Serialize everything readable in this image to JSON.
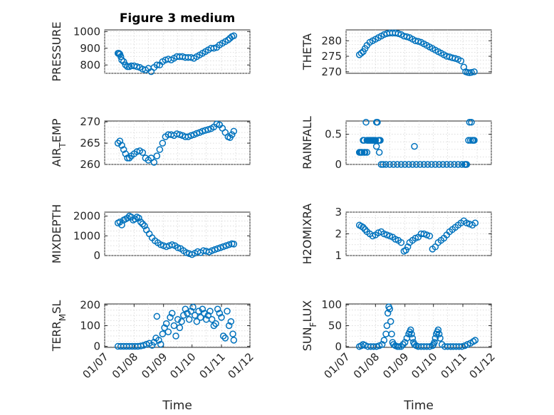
{
  "colors": {
    "marker": "#0072BD",
    "axis": "#262626",
    "grid": "#d0d0d0",
    "background": "#ffffff"
  },
  "chart_data": [
    {
      "id": "pressure",
      "type": "scatter",
      "title": "Figure 3 medium",
      "ylabel": "PRESSURE",
      "xlabel": "",
      "ylim": [
        750,
        1010
      ],
      "yticks": [
        800,
        900,
        1000
      ],
      "ytick_labels": [
        "800",
        "900",
        "1000"
      ],
      "xlim": [
        "2023-07-01",
        "2023-12-01"
      ],
      "xticks": [],
      "x": [
        "2023-07-15",
        "2023-07-16",
        "2023-07-17",
        "2023-07-18",
        "2023-07-19",
        "2023-07-21",
        "2023-07-23",
        "2023-07-25",
        "2023-07-27",
        "2023-07-29",
        "2023-08-01",
        "2023-08-04",
        "2023-08-07",
        "2023-08-10",
        "2023-08-13",
        "2023-08-16",
        "2023-08-19",
        "2023-08-22",
        "2023-08-25",
        "2023-08-28",
        "2023-08-31",
        "2023-09-03",
        "2023-09-06",
        "2023-09-09",
        "2023-09-12",
        "2023-09-15",
        "2023-09-18",
        "2023-09-21",
        "2023-09-24",
        "2023-09-27",
        "2023-09-30",
        "2023-10-03",
        "2023-10-06",
        "2023-10-09",
        "2023-10-12",
        "2023-10-15",
        "2023-10-18",
        "2023-10-21",
        "2023-10-24",
        "2023-10-27",
        "2023-10-30",
        "2023-11-02",
        "2023-11-05",
        "2023-11-08",
        "2023-11-10",
        "2023-11-12",
        "2023-11-14"
      ],
      "y": [
        870,
        870,
        865,
        850,
        830,
        820,
        800,
        790,
        790,
        795,
        795,
        790,
        785,
        775,
        770,
        780,
        760,
        785,
        800,
        800,
        820,
        830,
        835,
        830,
        840,
        850,
        850,
        850,
        845,
        845,
        845,
        840,
        850,
        860,
        870,
        880,
        890,
        900,
        900,
        905,
        920,
        930,
        940,
        950,
        960,
        970,
        975
      ]
    },
    {
      "id": "theta",
      "type": "scatter",
      "ylabel": "THETA",
      "xlabel": "",
      "ylim": [
        269.5,
        283.5
      ],
      "yticks": [
        270,
        275,
        280
      ],
      "ytick_labels": [
        "270",
        "275",
        "280"
      ],
      "xlim": [
        "2023-07-01",
        "2023-12-01"
      ],
      "xticks": [],
      "x": [
        "2023-07-15",
        "2023-07-17",
        "2023-07-19",
        "2023-07-21",
        "2023-07-23",
        "2023-07-26",
        "2023-07-29",
        "2023-08-01",
        "2023-08-04",
        "2023-08-07",
        "2023-08-10",
        "2023-08-13",
        "2023-08-16",
        "2023-08-19",
        "2023-08-22",
        "2023-08-25",
        "2023-08-28",
        "2023-08-31",
        "2023-09-03",
        "2023-09-06",
        "2023-09-09",
        "2023-09-12",
        "2023-09-15",
        "2023-09-18",
        "2023-09-21",
        "2023-09-24",
        "2023-09-27",
        "2023-09-30",
        "2023-10-03",
        "2023-10-06",
        "2023-10-09",
        "2023-10-12",
        "2023-10-15",
        "2023-10-18",
        "2023-10-21",
        "2023-10-24",
        "2023-10-27",
        "2023-10-30",
        "2023-11-02",
        "2023-11-04",
        "2023-11-06",
        "2023-11-08",
        "2023-11-10",
        "2023-11-13"
      ],
      "y": [
        275.5,
        276,
        276.5,
        277.5,
        278.5,
        279.5,
        280,
        280.5,
        281,
        281.5,
        282,
        282.3,
        282.5,
        282.5,
        282.5,
        282.3,
        282,
        281.5,
        281.3,
        281,
        280.5,
        280,
        279.8,
        279.5,
        279,
        278.5,
        278,
        277.5,
        277,
        276.5,
        276,
        275.5,
        275,
        274.8,
        274.5,
        274.3,
        274,
        273.5,
        271.5,
        270,
        269.8,
        269.7,
        269.8,
        270
      ]
    },
    {
      "id": "air_temp",
      "type": "scatter",
      "ylabel": "AIR_TEMP",
      "ylabel_main": "AIR",
      "ylabel_sub": "T",
      "ylabel_rest": "EMP",
      "xlabel": "",
      "ylim": [
        260,
        270.2
      ],
      "yticks": [
        260,
        265,
        270
      ],
      "ytick_labels": [
        "260",
        "265",
        "270"
      ],
      "xlim": [
        "2023-07-01",
        "2023-12-01"
      ],
      "xticks": [],
      "x": [
        "2023-07-15",
        "2023-07-17",
        "2023-07-19",
        "2023-07-21",
        "2023-07-23",
        "2023-07-25",
        "2023-07-27",
        "2023-07-29",
        "2023-08-01",
        "2023-08-04",
        "2023-08-07",
        "2023-08-10",
        "2023-08-13",
        "2023-08-16",
        "2023-08-19",
        "2023-08-22",
        "2023-08-25",
        "2023-08-28",
        "2023-08-31",
        "2023-09-03",
        "2023-09-06",
        "2023-09-09",
        "2023-09-12",
        "2023-09-15",
        "2023-09-18",
        "2023-09-21",
        "2023-09-24",
        "2023-09-27",
        "2023-09-30",
        "2023-10-03",
        "2023-10-06",
        "2023-10-09",
        "2023-10-12",
        "2023-10-15",
        "2023-10-18",
        "2023-10-21",
        "2023-10-24",
        "2023-10-27",
        "2023-10-30",
        "2023-11-02",
        "2023-11-05",
        "2023-11-08",
        "2023-11-10",
        "2023-11-12",
        "2023-11-14"
      ],
      "y": [
        265,
        265.5,
        264.5,
        263.5,
        262.5,
        261.5,
        261.5,
        262,
        262.5,
        263,
        263.2,
        262.8,
        261.5,
        261,
        261.5,
        260.5,
        262,
        263.5,
        265,
        266.5,
        267,
        267,
        266.8,
        267.2,
        267,
        266.8,
        266.5,
        266.5,
        266.8,
        267,
        267.3,
        267.5,
        267.8,
        268,
        268.2,
        268.4,
        268.8,
        269.5,
        269.3,
        268.5,
        267.5,
        266.5,
        266.3,
        267,
        267.8
      ]
    },
    {
      "id": "rainfall",
      "type": "scatter",
      "ylabel": "RAINFALL",
      "xlabel": "",
      "ylim": [
        0,
        0.72
      ],
      "yticks": [
        0,
        0.5
      ],
      "ytick_labels": [
        "0",
        "0.5"
      ],
      "xlim": [
        "2023-07-01",
        "2023-12-01"
      ],
      "xticks": [],
      "x": [
        "2023-07-15",
        "2023-07-16",
        "2023-07-17",
        "2023-07-18",
        "2023-07-19",
        "2023-07-20",
        "2023-07-20",
        "2023-07-21",
        "2023-07-22",
        "2023-07-23",
        "2023-07-23",
        "2023-07-24",
        "2023-07-25",
        "2023-07-26",
        "2023-07-27",
        "2023-07-28",
        "2023-07-29",
        "2023-07-30",
        "2023-07-31",
        "2023-08-01",
        "2023-08-02",
        "2023-08-03",
        "2023-08-04",
        "2023-08-05",
        "2023-08-06",
        "2023-08-02",
        "2023-08-05",
        "2023-08-07",
        "2023-08-09",
        "2023-08-12",
        "2023-08-16",
        "2023-08-20",
        "2023-08-24",
        "2023-08-28",
        "2023-09-01",
        "2023-09-05",
        "2023-09-09",
        "2023-09-13",
        "2023-09-17",
        "2023-09-21",
        "2023-09-25",
        "2023-09-29",
        "2023-10-03",
        "2023-10-07",
        "2023-10-11",
        "2023-10-15",
        "2023-10-19",
        "2023-10-23",
        "2023-10-27",
        "2023-10-31",
        "2023-09-11",
        "2023-11-03",
        "2023-11-04",
        "2023-11-04",
        "2023-11-05",
        "2023-11-07",
        "2023-11-08",
        "2023-11-09",
        "2023-11-10",
        "2023-11-11",
        "2023-11-12",
        "2023-11-13"
      ],
      "y": [
        0.2,
        0.2,
        0.2,
        0.2,
        0.4,
        0.4,
        0.2,
        0.2,
        0.7,
        0.4,
        0.2,
        0.4,
        0.4,
        0.4,
        0.4,
        0.4,
        0.4,
        0.4,
        0.4,
        0.4,
        0.7,
        0.7,
        0.4,
        0.4,
        0.4,
        0.3,
        0.2,
        0,
        0,
        0,
        0,
        0,
        0,
        0,
        0,
        0,
        0,
        0,
        0,
        0,
        0,
        0,
        0,
        0,
        0,
        0,
        0,
        0,
        0,
        0,
        0.3,
        0,
        0,
        0,
        0,
        0.4,
        0.7,
        0.4,
        0.7,
        0.4,
        0.4,
        0.4
      ]
    },
    {
      "id": "mixdepth",
      "type": "scatter",
      "ylabel": "MIXDEPTH",
      "xlabel": "",
      "ylim": [
        0,
        2200
      ],
      "yticks": [
        0,
        1000,
        2000
      ],
      "ytick_labels": [
        "0",
        "1000",
        "2000"
      ],
      "xlim": [
        "2023-07-01",
        "2023-12-01"
      ],
      "xticks": [],
      "x": [
        "2023-07-15",
        "2023-07-17",
        "2023-07-19",
        "2023-07-21",
        "2023-07-23",
        "2023-07-25",
        "2023-07-27",
        "2023-07-29",
        "2023-07-31",
        "2023-08-02",
        "2023-08-04",
        "2023-08-06",
        "2023-08-08",
        "2023-08-10",
        "2023-08-12",
        "2023-08-14",
        "2023-08-17",
        "2023-08-20",
        "2023-08-23",
        "2023-08-26",
        "2023-08-29",
        "2023-09-01",
        "2023-09-04",
        "2023-09-07",
        "2023-09-10",
        "2023-09-13",
        "2023-09-16",
        "2023-09-19",
        "2023-09-22",
        "2023-09-25",
        "2023-09-28",
        "2023-10-01",
        "2023-10-04",
        "2023-10-07",
        "2023-10-10",
        "2023-10-13",
        "2023-10-16",
        "2023-10-19",
        "2023-10-22",
        "2023-10-25",
        "2023-10-28",
        "2023-10-31",
        "2023-11-03",
        "2023-11-06",
        "2023-11-09",
        "2023-11-12",
        "2023-11-14"
      ],
      "y": [
        1650,
        1700,
        1550,
        1800,
        1850,
        1900,
        2000,
        1950,
        1800,
        1850,
        1950,
        1900,
        1700,
        1600,
        1500,
        1300,
        1100,
        900,
        750,
        650,
        550,
        500,
        450,
        500,
        550,
        500,
        400,
        350,
        250,
        150,
        100,
        50,
        120,
        200,
        150,
        250,
        220,
        180,
        250,
        300,
        350,
        400,
        450,
        500,
        550,
        600,
        580
      ]
    },
    {
      "id": "h2omixra",
      "type": "scatter",
      "ylabel": "H2OMIXRA",
      "xlabel": "",
      "ylim": [
        1,
        3
      ],
      "yticks": [
        1,
        2,
        3
      ],
      "ytick_labels": [
        "1",
        "2",
        "3"
      ],
      "xlim": [
        "2023-07-01",
        "2023-12-01"
      ],
      "xticks": [],
      "x": [
        "2023-07-15",
        "2023-07-17",
        "2023-07-19",
        "2023-07-21",
        "2023-07-23",
        "2023-07-26",
        "2023-07-29",
        "2023-08-01",
        "2023-08-04",
        "2023-08-07",
        "2023-08-10",
        "2023-08-13",
        "2023-08-16",
        "2023-08-19",
        "2023-08-22",
        "2023-08-25",
        "2023-08-28",
        "2023-08-31",
        "2023-09-02",
        "2023-09-04",
        "2023-09-06",
        "2023-09-09",
        "2023-09-12",
        "2023-09-15",
        "2023-09-18",
        "2023-09-21",
        "2023-09-24",
        "2023-09-27",
        "2023-09-30",
        "2023-10-03",
        "2023-10-06",
        "2023-10-09",
        "2023-10-12",
        "2023-10-15",
        "2023-10-18",
        "2023-10-21",
        "2023-10-24",
        "2023-10-27",
        "2023-10-30",
        "2023-11-02",
        "2023-11-05",
        "2023-11-08",
        "2023-11-11",
        "2023-11-14"
      ],
      "y": [
        2.4,
        2.35,
        2.3,
        2.2,
        2.1,
        2.0,
        1.9,
        1.95,
        2.05,
        2.1,
        2.0,
        1.95,
        1.9,
        1.85,
        1.75,
        1.7,
        1.6,
        1.2,
        1.25,
        1.4,
        1.6,
        1.7,
        1.8,
        1.85,
        2.0,
        2.0,
        1.95,
        1.9,
        1.3,
        1.4,
        1.6,
        1.7,
        1.8,
        1.95,
        2.1,
        2.2,
        2.3,
        2.4,
        2.5,
        2.6,
        2.5,
        2.45,
        2.4,
        2.5
      ]
    },
    {
      "id": "terr_msl",
      "type": "scatter",
      "ylabel": "TERR_MSL",
      "ylabel_main": "TERR",
      "ylabel_sub": "M",
      "ylabel_rest": "SL",
      "xlabel": "Time",
      "ylim": [
        -5,
        205
      ],
      "yticks": [
        0,
        100,
        200
      ],
      "ytick_labels": [
        "0",
        "100",
        "200"
      ],
      "xlim": [
        "2023-07-01",
        "2023-12-01"
      ],
      "xticks": [
        "2023-07-01",
        "2023-08-01",
        "2023-09-01",
        "2023-10-01",
        "2023-11-01",
        "2023-12-01"
      ],
      "xtick_labels": [
        "01/07",
        "01/08",
        "01/09",
        "01/10",
        "01/11",
        "01/12"
      ],
      "x": [
        "2023-07-15",
        "2023-07-18",
        "2023-07-21",
        "2023-07-24",
        "2023-07-27",
        "2023-07-30",
        "2023-08-02",
        "2023-08-05",
        "2023-08-08",
        "2023-08-11",
        "2023-08-14",
        "2023-08-17",
        "2023-08-20",
        "2023-08-22",
        "2023-08-24",
        "2023-08-25",
        "2023-08-27",
        "2023-08-29",
        "2023-08-31",
        "2023-09-02",
        "2023-09-04",
        "2023-09-06",
        "2023-09-08",
        "2023-09-10",
        "2023-09-12",
        "2023-09-14",
        "2023-09-16",
        "2023-09-18",
        "2023-09-20",
        "2023-09-22",
        "2023-09-24",
        "2023-09-26",
        "2023-09-28",
        "2023-09-30",
        "2023-10-02",
        "2023-10-04",
        "2023-10-06",
        "2023-10-08",
        "2023-10-10",
        "2023-10-12",
        "2023-10-14",
        "2023-10-16",
        "2023-10-18",
        "2023-10-20",
        "2023-10-22",
        "2023-10-24",
        "2023-10-26",
        "2023-10-28",
        "2023-10-30",
        "2023-11-01",
        "2023-11-03",
        "2023-11-05",
        "2023-11-07",
        "2023-11-09",
        "2023-11-11",
        "2023-11-13",
        "2023-11-14"
      ],
      "y": [
        0,
        0,
        0,
        0,
        0,
        0,
        0,
        0,
        2,
        5,
        10,
        15,
        5,
        20,
        40,
        145,
        30,
        10,
        60,
        90,
        110,
        70,
        140,
        160,
        100,
        50,
        130,
        90,
        120,
        150,
        180,
        160,
        130,
        170,
        190,
        150,
        120,
        170,
        140,
        180,
        160,
        130,
        150,
        170,
        130,
        100,
        110,
        180,
        160,
        140,
        50,
        40,
        170,
        100,
        120,
        60,
        30
      ]
    },
    {
      "id": "sun_flux",
      "type": "scatter",
      "ylabel": "SUN_FLUX",
      "ylabel_main": "SUN",
      "ylabel_sub": "F",
      "ylabel_rest": "LUX",
      "xlabel": "Time",
      "ylim": [
        -2,
        102
      ],
      "yticks": [
        0,
        50,
        100
      ],
      "ytick_labels": [
        "0",
        "50",
        "100"
      ],
      "xlim": [
        "2023-07-01",
        "2023-12-01"
      ],
      "xticks": [
        "2023-07-01",
        "2023-08-01",
        "2023-09-01",
        "2023-10-01",
        "2023-11-01",
        "2023-12-01"
      ],
      "xtick_labels": [
        "01/07",
        "01/08",
        "01/09",
        "01/10",
        "01/11",
        "01/12"
      ],
      "x": [
        "2023-07-15",
        "2023-07-17",
        "2023-07-19",
        "2023-07-21",
        "2023-07-24",
        "2023-07-27",
        "2023-07-30",
        "2023-08-02",
        "2023-08-05",
        "2023-08-08",
        "2023-08-10",
        "2023-08-12",
        "2023-08-13",
        "2023-08-14",
        "2023-08-15",
        "2023-08-16",
        "2023-08-17",
        "2023-08-18",
        "2023-08-19",
        "2023-08-20",
        "2023-08-22",
        "2023-08-24",
        "2023-08-26",
        "2023-08-28",
        "2023-08-30",
        "2023-09-01",
        "2023-09-03",
        "2023-09-05",
        "2023-09-06",
        "2023-09-07",
        "2023-09-08",
        "2023-09-09",
        "2023-09-10",
        "2023-09-11",
        "2023-09-13",
        "2023-09-15",
        "2023-09-18",
        "2023-09-21",
        "2023-09-24",
        "2023-09-27",
        "2023-09-30",
        "2023-10-01",
        "2023-10-02",
        "2023-10-03",
        "2023-10-04",
        "2023-10-05",
        "2023-10-06",
        "2023-10-07",
        "2023-10-08",
        "2023-10-10",
        "2023-10-13",
        "2023-10-16",
        "2023-10-19",
        "2023-10-22",
        "2023-10-25",
        "2023-10-28",
        "2023-10-31",
        "2023-11-03",
        "2023-11-06",
        "2023-11-09",
        "2023-11-12",
        "2023-11-14"
      ],
      "y": [
        0,
        2,
        5,
        3,
        0,
        0,
        0,
        0,
        2,
        5,
        15,
        30,
        50,
        80,
        95,
        90,
        60,
        30,
        10,
        5,
        2,
        0,
        0,
        0,
        5,
        10,
        20,
        30,
        35,
        40,
        30,
        20,
        10,
        5,
        2,
        0,
        0,
        0,
        0,
        0,
        2,
        5,
        10,
        20,
        30,
        35,
        40,
        30,
        20,
        5,
        0,
        0,
        0,
        0,
        0,
        0,
        0,
        2,
        5,
        8,
        12,
        15
      ]
    }
  ]
}
